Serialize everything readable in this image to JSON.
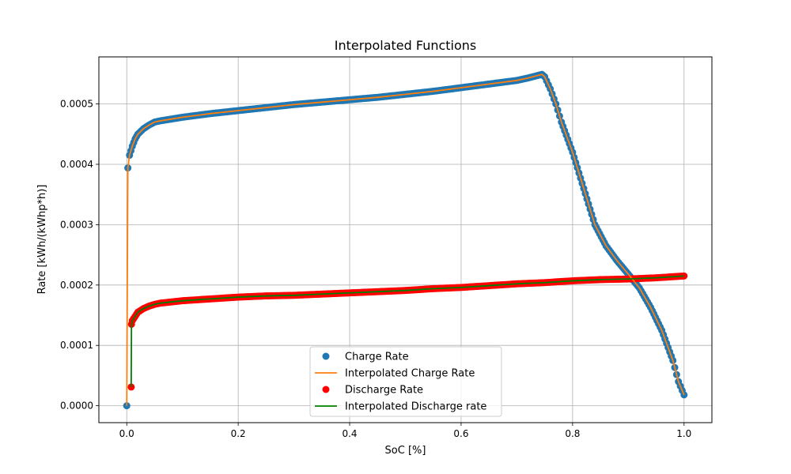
{
  "chart_data": {
    "type": "line",
    "title": "Interpolated Functions",
    "xlabel": "SoC [%]",
    "ylabel": "Rate [kWh/(kWhp*h)]",
    "xlim": [
      -0.05,
      1.05
    ],
    "ylim": [
      -2.8e-05,
      0.000578
    ],
    "xticks": [
      0.0,
      0.2,
      0.4,
      0.6,
      0.8,
      1.0
    ],
    "xtick_labels": [
      "0.0",
      "0.2",
      "0.4",
      "0.6",
      "0.8",
      "1.0"
    ],
    "yticks": [
      0.0,
      0.0001,
      0.0002,
      0.0003,
      0.0004,
      0.0005
    ],
    "ytick_labels": [
      "0.0000",
      "0.0001",
      "0.0002",
      "0.0003",
      "0.0004",
      "0.0005"
    ],
    "grid": true,
    "legend_position": "lower-center",
    "series": [
      {
        "name": "Charge Rate",
        "kind": "points",
        "color": "#1f77b4",
        "x": [
          0.0,
          0.002,
          0.005,
          0.01,
          0.015,
          0.02,
          0.03,
          0.04,
          0.05,
          0.06,
          0.08,
          0.1,
          0.15,
          0.2,
          0.25,
          0.3,
          0.35,
          0.4,
          0.45,
          0.5,
          0.55,
          0.6,
          0.65,
          0.7,
          0.72,
          0.745,
          0.75,
          0.76,
          0.77,
          0.78,
          0.8,
          0.82,
          0.84,
          0.86,
          0.88,
          0.9,
          0.92,
          0.94,
          0.96,
          0.98,
          0.99,
          1.0
        ],
        "y": [
          0.0,
          0.000394,
          0.000415,
          0.00043,
          0.000442,
          0.00045,
          0.000459,
          0.000465,
          0.00047,
          0.000472,
          0.000475,
          0.000478,
          0.000484,
          0.000489,
          0.000494,
          0.000499,
          0.000503,
          0.000507,
          0.000511,
          0.000516,
          0.000521,
          0.000527,
          0.000533,
          0.000539,
          0.000543,
          0.000549,
          0.000545,
          0.000525,
          0.0005,
          0.00047,
          0.00042,
          0.00036,
          0.0003,
          0.000265,
          0.00024,
          0.000218,
          0.000195,
          0.000163,
          0.000125,
          7.5e-05,
          4e-05,
          1.8e-05
        ]
      },
      {
        "name": "Interpolated Charge Rate",
        "kind": "line",
        "color": "#ff7f0e",
        "source": "Charge Rate"
      },
      {
        "name": "Discharge Rate",
        "kind": "points",
        "color": "#ff0000",
        "x": [
          0.008,
          0.0085,
          0.01,
          0.015,
          0.02,
          0.03,
          0.04,
          0.05,
          0.06,
          0.08,
          0.1,
          0.15,
          0.2,
          0.25,
          0.3,
          0.35,
          0.4,
          0.45,
          0.5,
          0.55,
          0.6,
          0.65,
          0.7,
          0.75,
          0.8,
          0.85,
          0.9,
          0.95,
          1.0
        ],
        "y": [
          3.1e-05,
          0.000135,
          0.000141,
          0.000148,
          0.000155,
          0.000161,
          0.000165,
          0.000168,
          0.00017,
          0.000172,
          0.000174,
          0.000177,
          0.00018,
          0.000182,
          0.000183,
          0.000185,
          0.000187,
          0.000189,
          0.000191,
          0.000194,
          0.000196,
          0.000199,
          0.000202,
          0.000204,
          0.000207,
          0.000209,
          0.00021,
          0.000212,
          0.000215
        ]
      },
      {
        "name": "Interpolated Discharge rate",
        "kind": "line",
        "color": "#008000",
        "source": "Discharge Rate"
      }
    ]
  }
}
